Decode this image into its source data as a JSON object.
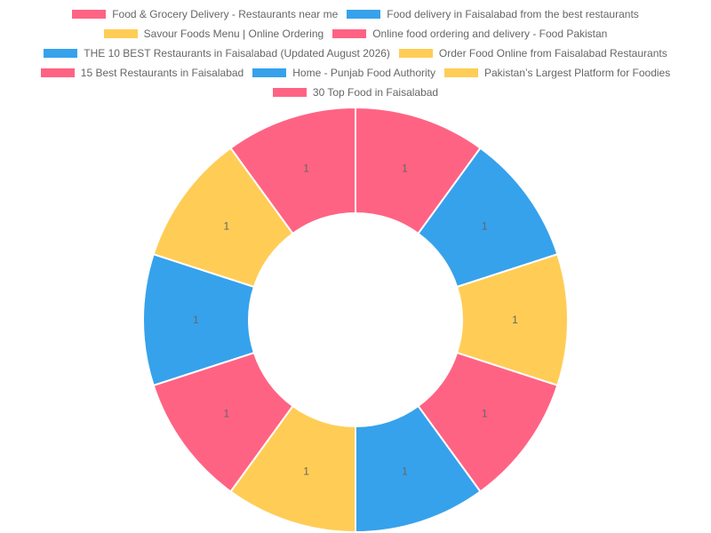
{
  "chart_data": {
    "type": "pie",
    "variant": "doughnut",
    "legend_position": "top",
    "categories": [
      "Food & Grocery Delivery - Restaurants near me",
      "Food delivery in Faisalabad from the best restaurants",
      "Savour Foods Menu | Online Ordering",
      "Online food ordering and delivery - Food Pakistan",
      "THE 10 BEST Restaurants in Faisalabad (Updated August 2026)",
      "Order Food Online from Faisalabad Restaurants",
      "15 Best Restaurants in Faisalabad",
      "Home - Punjab Food Authority",
      "Pakistan’s Largest Platform for Foodies",
      "30 Top Food in Faisalabad"
    ],
    "values": [
      1,
      1,
      1,
      1,
      1,
      1,
      1,
      1,
      1,
      1
    ],
    "value_labels": [
      "1",
      "1",
      "1",
      "1",
      "1",
      "1",
      "1",
      "1",
      "1",
      "1"
    ],
    "colors": [
      "#ff6384",
      "#36a2eb",
      "#ffcd56",
      "#ff6384",
      "#36a2eb",
      "#ffcd56",
      "#ff6384",
      "#36a2eb",
      "#ffcd56",
      "#ff6384"
    ],
    "border_color": "#ffffff",
    "label_color": "#666666"
  }
}
